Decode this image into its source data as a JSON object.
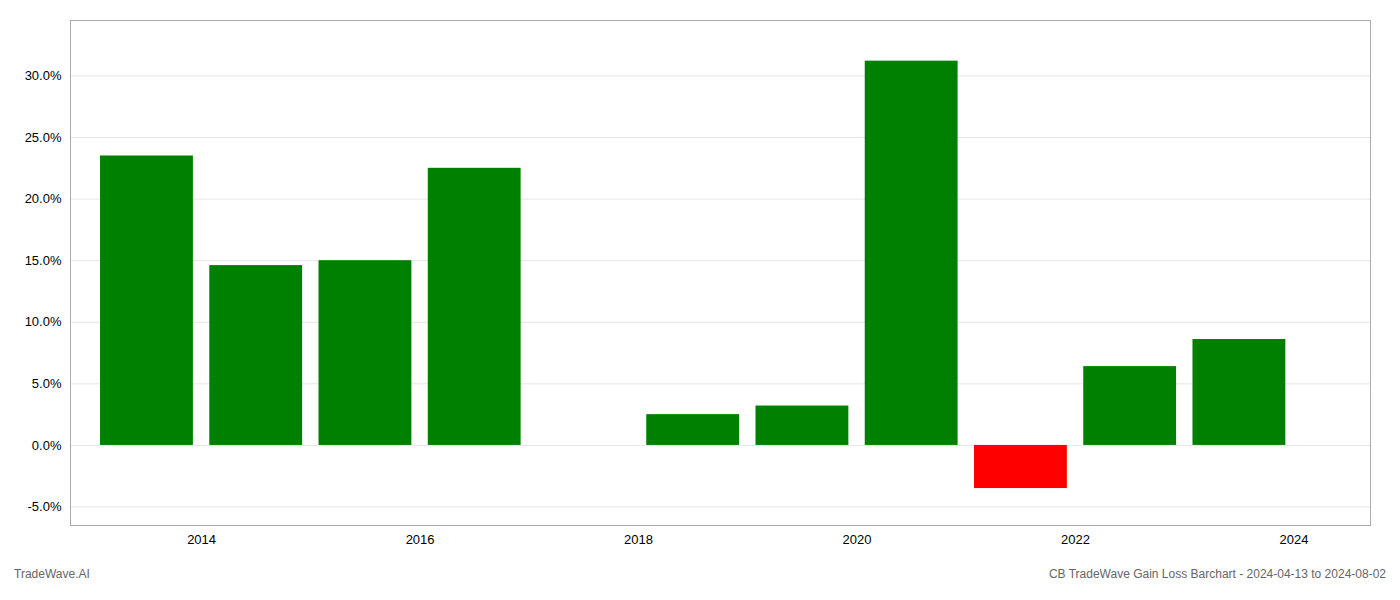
{
  "chart_data": {
    "type": "bar",
    "x": [
      2013,
      2014,
      2015,
      2016,
      2017,
      2018,
      2019,
      2020,
      2021,
      2022,
      2023
    ],
    "values": [
      0.235,
      0.146,
      0.15,
      0.225,
      0.0,
      0.025,
      0.032,
      0.312,
      -0.035,
      0.064,
      0.086
    ],
    "colors": [
      "#008000",
      "#008000",
      "#008000",
      "#008000",
      "#008000",
      "#008000",
      "#008000",
      "#008000",
      "#ff0000",
      "#008000",
      "#008000"
    ],
    "xlim": [
      2012.3,
      2024.2
    ],
    "xticks": [
      {
        "value": 2013.5,
        "label": "2014"
      },
      {
        "value": 2015.5,
        "label": "2016"
      },
      {
        "value": 2017.5,
        "label": "2018"
      },
      {
        "value": 2019.5,
        "label": "2020"
      },
      {
        "value": 2021.5,
        "label": "2022"
      },
      {
        "value": 2023.5,
        "label": "2024"
      }
    ],
    "ylim": [
      -0.065,
      0.345
    ],
    "yticks": [
      {
        "value": -0.05,
        "label": "-5.0%"
      },
      {
        "value": 0.0,
        "label": "0.0%"
      },
      {
        "value": 0.05,
        "label": "5.0%"
      },
      {
        "value": 0.1,
        "label": "10.0%"
      },
      {
        "value": 0.15,
        "label": "15.0%"
      },
      {
        "value": 0.2,
        "label": "20.0%"
      },
      {
        "value": 0.25,
        "label": "25.0%"
      },
      {
        "value": 0.3,
        "label": "30.0%"
      }
    ],
    "grid": true,
    "annotations": [
      "TradeWave.AI",
      "CB TradeWave Gain Loss Barchart - 2024-04-13 to 2024-08-02"
    ]
  }
}
